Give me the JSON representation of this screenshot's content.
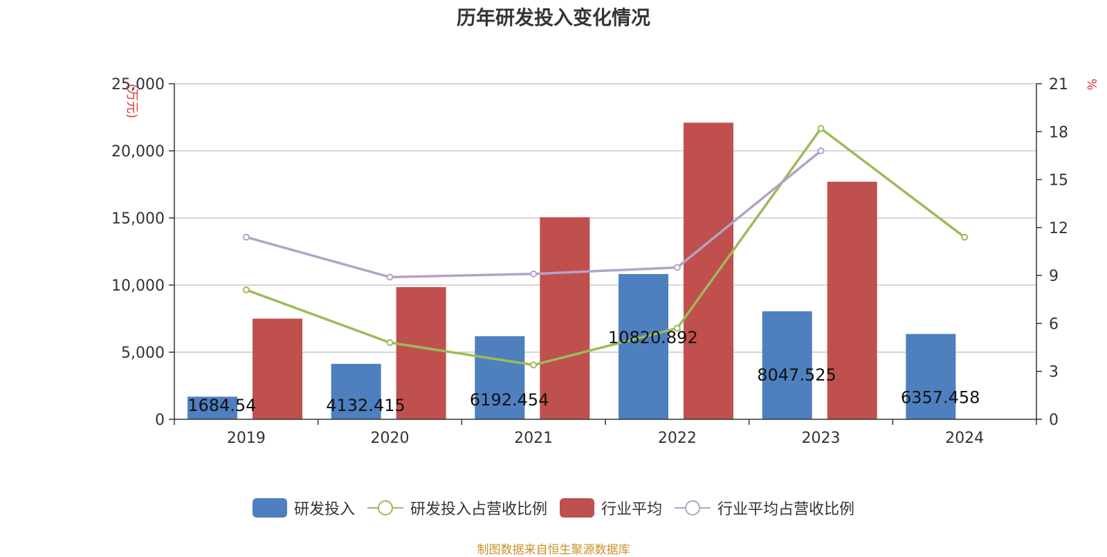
{
  "chart_data": {
    "type": "bar",
    "title": "历年研发投入变化情况",
    "categories": [
      "2019",
      "2020",
      "2021",
      "2022",
      "2023",
      "2024"
    ],
    "left_axis": {
      "unit_label": "(万元)",
      "ylim": [
        0,
        25000
      ],
      "ticks": [
        "0",
        "5,000",
        "10,000",
        "15,000",
        "20,000",
        "25,000"
      ],
      "tick_values": [
        0,
        5000,
        10000,
        15000,
        20000,
        25000
      ]
    },
    "right_axis": {
      "unit_label": "%",
      "ylim": [
        0,
        21
      ],
      "ticks": [
        "0",
        "3",
        "6",
        "9",
        "12",
        "15",
        "18",
        "21"
      ],
      "tick_values": [
        0,
        3,
        6,
        9,
        12,
        15,
        18,
        21
      ]
    },
    "series": [
      {
        "name": "研发投入",
        "type": "bar",
        "axis": "left",
        "color": "#4e7fbf",
        "values": [
          1684.54,
          4132.415,
          6192.454,
          10820.892,
          8047.525,
          6357.458
        ],
        "labels": [
          "1684.54",
          "4132.415",
          "6192.454",
          "10820.892",
          "8047.525",
          "6357.458"
        ]
      },
      {
        "name": "行业平均",
        "type": "bar",
        "axis": "left",
        "color": "#c0504d",
        "values": [
          7500,
          9850,
          15050,
          22100,
          17700,
          null
        ]
      },
      {
        "name": "研发投入占营收比例",
        "type": "line",
        "axis": "right",
        "color": "#9bbb59",
        "values": [
          8.1,
          4.8,
          3.4,
          5.7,
          18.2,
          11.4
        ]
      },
      {
        "name": "行业平均占营收比例",
        "type": "line",
        "axis": "right",
        "color": "#b3a2c7",
        "values": [
          11.4,
          8.9,
          9.1,
          9.5,
          16.8,
          null
        ]
      }
    ],
    "grid": true,
    "legend_position": "bottom"
  },
  "source_note": "制图数据来自恒生聚源数据库"
}
